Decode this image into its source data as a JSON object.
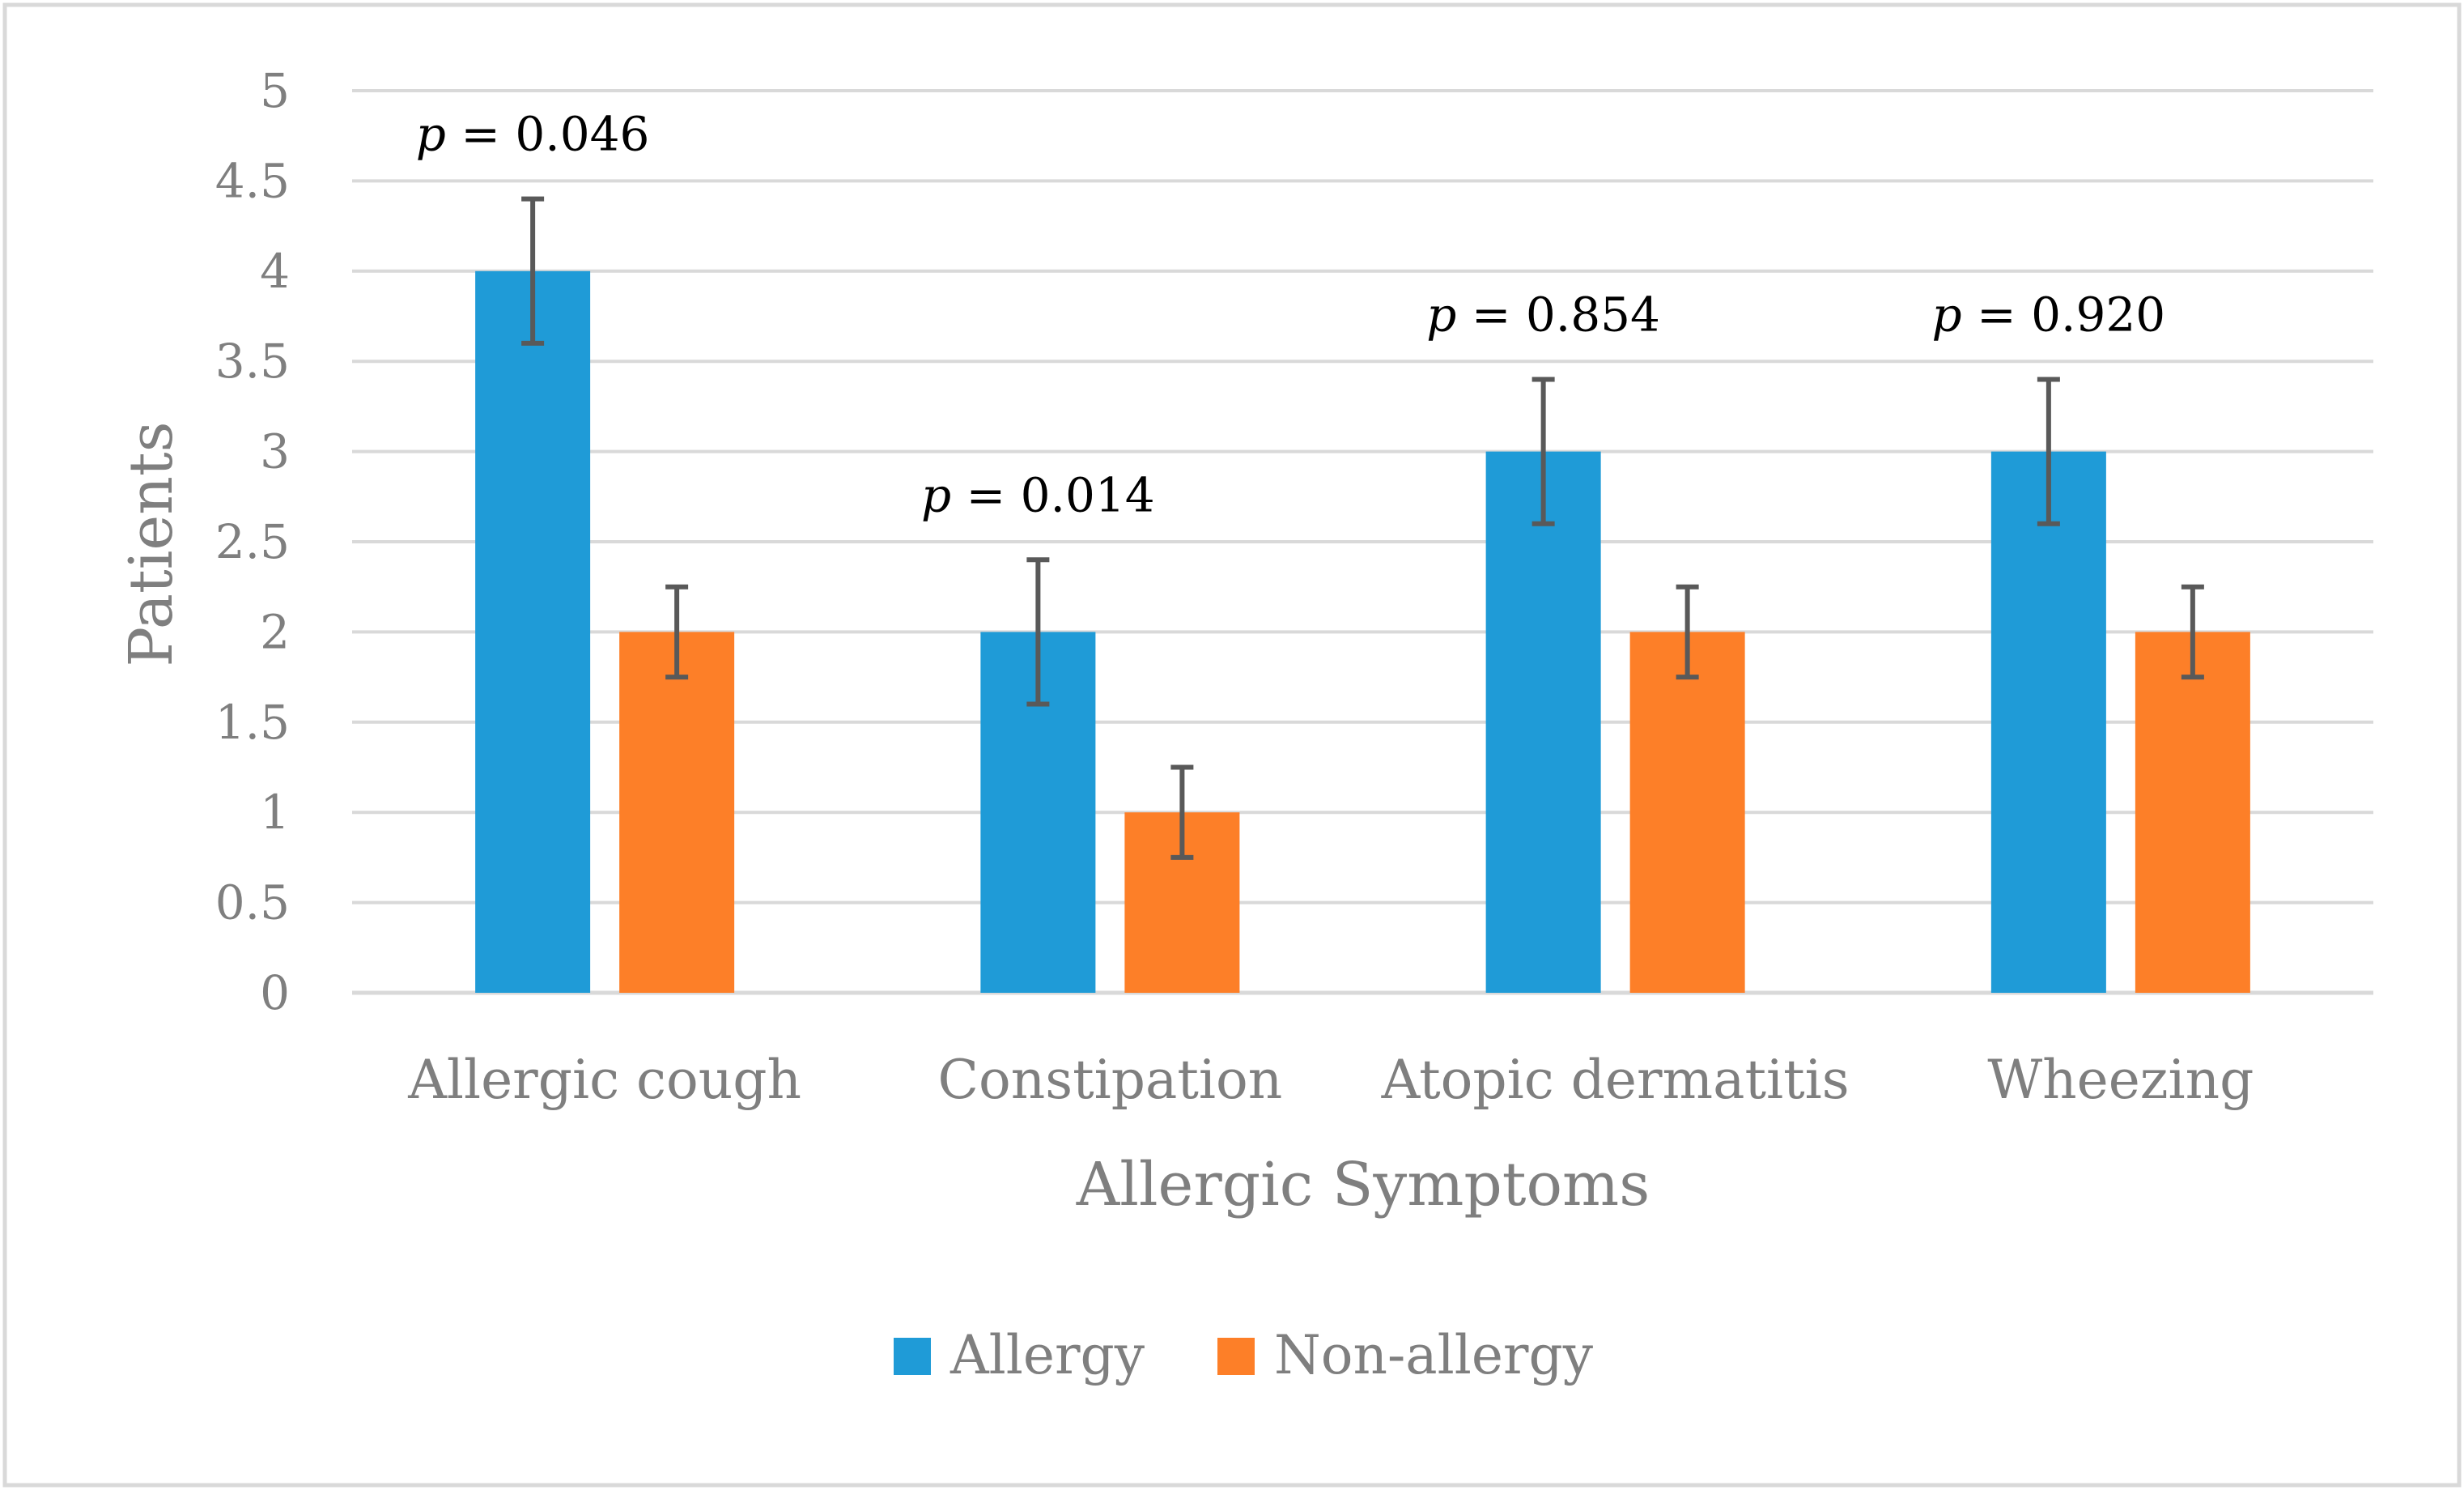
{
  "chart_data": {
    "type": "bar",
    "xlabel": "Allergic Symptoms",
    "ylabel": "Patients",
    "ylim": [
      0,
      5
    ],
    "yticks": [
      "0",
      "0.5",
      "1",
      "1.5",
      "2",
      "2.5",
      "3",
      "3.5",
      "4",
      "4.5",
      "5"
    ],
    "grid": true,
    "legend_position": "bottom",
    "categories": [
      "Allergic cough",
      "Constipation",
      "Atopic dermatitis",
      "Wheezing"
    ],
    "series": [
      {
        "name": "Allergy",
        "color": "#1f9bd7",
        "values": [
          4,
          2,
          3,
          3
        ],
        "error": [
          0.4,
          0.4,
          0.4,
          0.4
        ]
      },
      {
        "name": "Non-allergy",
        "color": "#fd7f28",
        "values": [
          2,
          1,
          2,
          2
        ],
        "error": [
          0.25,
          0.25,
          0.25,
          0.25
        ]
      }
    ],
    "annotations": [
      {
        "category": "Allergic cough",
        "prefix": "p",
        "text": " = 0.046"
      },
      {
        "category": "Constipation",
        "prefix": "p",
        "text": " = 0.014"
      },
      {
        "category": "Atopic dermatitis",
        "prefix": "p",
        "text": " = 0.854"
      },
      {
        "category": "Wheezing",
        "prefix": "p",
        "text": " = 0.920"
      }
    ],
    "colors": {
      "grid": "#d9d9d9",
      "error_bar": "#595959",
      "frame": "#d9d9d9"
    }
  }
}
